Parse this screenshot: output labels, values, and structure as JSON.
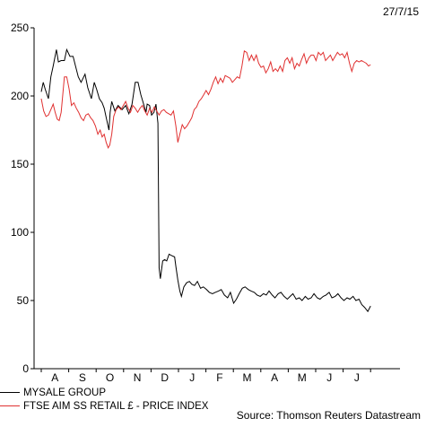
{
  "date_label": "27/7/15",
  "source_label": "Source: Thomson Reuters Datastream",
  "chart_data": {
    "type": "line",
    "ylim": [
      0,
      250
    ],
    "yticks": [
      0,
      50,
      100,
      150,
      200,
      250
    ],
    "x_categories": [
      "A",
      "S",
      "O",
      "N",
      "D",
      "J",
      "F",
      "M",
      "A",
      "M",
      "J",
      "J"
    ],
    "grid": false,
    "legend_position": "bottom-left",
    "series": [
      {
        "name": "MYSALE GROUP",
        "color": "#000000",
        "points": [
          [
            0.0,
            203
          ],
          [
            0.05,
            210
          ],
          [
            0.1,
            205
          ],
          [
            0.18,
            198
          ],
          [
            0.24,
            214
          ],
          [
            0.3,
            222
          ],
          [
            0.38,
            234
          ],
          [
            0.43,
            225
          ],
          [
            0.5,
            226
          ],
          [
            0.58,
            226
          ],
          [
            0.64,
            234
          ],
          [
            0.72,
            229
          ],
          [
            0.8,
            229
          ],
          [
            0.86,
            222
          ],
          [
            0.93,
            214
          ],
          [
            1.0,
            210
          ],
          [
            1.1,
            216
          ],
          [
            1.17,
            206
          ],
          [
            1.26,
            198
          ],
          [
            1.33,
            210
          ],
          [
            1.39,
            205
          ],
          [
            1.46,
            198
          ],
          [
            1.53,
            195
          ],
          [
            1.58,
            191
          ],
          [
            1.64,
            183
          ],
          [
            1.7,
            175
          ],
          [
            1.73,
            188
          ],
          [
            1.77,
            196
          ],
          [
            1.85,
            189
          ],
          [
            1.93,
            193
          ],
          [
            2.03,
            190
          ],
          [
            2.12,
            193
          ],
          [
            2.2,
            187
          ],
          [
            2.28,
            194
          ],
          [
            2.36,
            210
          ],
          [
            2.43,
            210
          ],
          [
            2.5,
            201
          ],
          [
            2.58,
            193
          ],
          [
            2.63,
            188
          ],
          [
            2.66,
            194
          ],
          [
            2.72,
            193
          ],
          [
            2.77,
            186
          ],
          [
            2.83,
            188
          ],
          [
            2.88,
            194
          ],
          [
            2.93,
            180
          ],
          [
            2.96,
            74
          ],
          [
            2.99,
            66
          ],
          [
            3.05,
            79
          ],
          [
            3.1,
            80
          ],
          [
            3.15,
            79
          ],
          [
            3.21,
            84
          ],
          [
            3.27,
            83
          ],
          [
            3.35,
            82
          ],
          [
            3.38,
            75
          ],
          [
            3.43,
            65
          ],
          [
            3.48,
            57
          ],
          [
            3.52,
            53
          ],
          [
            3.58,
            60
          ],
          [
            3.65,
            63
          ],
          [
            3.72,
            64
          ],
          [
            3.78,
            62
          ],
          [
            3.85,
            61
          ],
          [
            3.92,
            64
          ],
          [
            4.0,
            59
          ],
          [
            4.07,
            60
          ],
          [
            4.15,
            58
          ],
          [
            4.22,
            56
          ],
          [
            4.3,
            55
          ],
          [
            4.37,
            56
          ],
          [
            4.45,
            57
          ],
          [
            4.52,
            58
          ],
          [
            4.6,
            54
          ],
          [
            4.68,
            52
          ],
          [
            4.75,
            56
          ],
          [
            4.83,
            48
          ],
          [
            4.9,
            51
          ],
          [
            4.97,
            55
          ],
          [
            5.05,
            59
          ],
          [
            5.12,
            60
          ],
          [
            5.2,
            58
          ],
          [
            5.27,
            57
          ],
          [
            5.35,
            56
          ],
          [
            5.42,
            54
          ],
          [
            5.5,
            53
          ],
          [
            5.58,
            55
          ],
          [
            5.65,
            54
          ],
          [
            5.72,
            57
          ],
          [
            5.8,
            54
          ],
          [
            5.87,
            52
          ],
          [
            5.95,
            55
          ],
          [
            6.02,
            56
          ],
          [
            6.1,
            53
          ],
          [
            6.18,
            51
          ],
          [
            6.25,
            53
          ],
          [
            6.32,
            55
          ],
          [
            6.4,
            51
          ],
          [
            6.48,
            52
          ],
          [
            6.55,
            50
          ],
          [
            6.63,
            53
          ],
          [
            6.7,
            51
          ],
          [
            6.78,
            52
          ],
          [
            6.85,
            55
          ],
          [
            6.93,
            52
          ],
          [
            7.0,
            51
          ],
          [
            7.08,
            53
          ],
          [
            7.15,
            54
          ],
          [
            7.23,
            56
          ],
          [
            7.3,
            52
          ],
          [
            7.38,
            53
          ],
          [
            7.45,
            55
          ],
          [
            7.53,
            52
          ],
          [
            7.6,
            50
          ],
          [
            7.68,
            52
          ],
          [
            7.75,
            51
          ],
          [
            7.83,
            53
          ],
          [
            7.9,
            50
          ],
          [
            7.98,
            51
          ],
          [
            8.05,
            47
          ],
          [
            8.12,
            45
          ],
          [
            8.2,
            42
          ],
          [
            8.27,
            46
          ]
        ]
      },
      {
        "name": "FTSE AIM SS RETAIL £ - PRICE INDEX",
        "color": "#e03030",
        "points": [
          [
            0.0,
            198
          ],
          [
            0.06,
            189
          ],
          [
            0.12,
            185
          ],
          [
            0.18,
            186
          ],
          [
            0.24,
            190
          ],
          [
            0.3,
            194
          ],
          [
            0.35,
            188
          ],
          [
            0.4,
            183
          ],
          [
            0.45,
            182
          ],
          [
            0.5,
            188
          ],
          [
            0.54,
            201
          ],
          [
            0.58,
            214
          ],
          [
            0.64,
            214
          ],
          [
            0.7,
            205
          ],
          [
            0.76,
            193
          ],
          [
            0.82,
            195
          ],
          [
            0.88,
            191
          ],
          [
            0.94,
            188
          ],
          [
            1.0,
            184
          ],
          [
            1.06,
            182
          ],
          [
            1.12,
            186
          ],
          [
            1.18,
            187
          ],
          [
            1.24,
            184
          ],
          [
            1.3,
            182
          ],
          [
            1.36,
            178
          ],
          [
            1.42,
            172
          ],
          [
            1.48,
            175
          ],
          [
            1.53,
            170
          ],
          [
            1.58,
            172
          ],
          [
            1.63,
            166
          ],
          [
            1.68,
            162
          ],
          [
            1.72,
            164
          ],
          [
            1.77,
            172
          ],
          [
            1.82,
            185
          ],
          [
            1.88,
            190
          ],
          [
            1.94,
            192
          ],
          [
            2.0,
            190
          ],
          [
            2.06,
            193
          ],
          [
            2.12,
            196
          ],
          [
            2.18,
            191
          ],
          [
            2.24,
            188
          ],
          [
            2.3,
            193
          ],
          [
            2.36,
            191
          ],
          [
            2.42,
            188
          ],
          [
            2.48,
            191
          ],
          [
            2.54,
            193
          ],
          [
            2.6,
            189
          ],
          [
            2.66,
            186
          ],
          [
            2.72,
            191
          ],
          [
            2.78,
            188
          ],
          [
            2.84,
            192
          ],
          [
            2.9,
            189
          ],
          [
            2.96,
            186
          ],
          [
            3.02,
            189
          ],
          [
            3.08,
            190
          ],
          [
            3.14,
            188
          ],
          [
            3.2,
            187
          ],
          [
            3.26,
            186
          ],
          [
            3.32,
            189
          ],
          [
            3.38,
            178
          ],
          [
            3.43,
            166
          ],
          [
            3.48,
            172
          ],
          [
            3.54,
            179
          ],
          [
            3.6,
            176
          ],
          [
            3.66,
            178
          ],
          [
            3.72,
            181
          ],
          [
            3.78,
            184
          ],
          [
            3.84,
            190
          ],
          [
            3.9,
            192
          ],
          [
            3.96,
            196
          ],
          [
            4.02,
            198
          ],
          [
            4.08,
            201
          ],
          [
            4.14,
            204
          ],
          [
            4.2,
            201
          ],
          [
            4.26,
            205
          ],
          [
            4.32,
            210
          ],
          [
            4.38,
            214
          ],
          [
            4.44,
            209
          ],
          [
            4.5,
            213
          ],
          [
            4.56,
            210
          ],
          [
            4.62,
            215
          ],
          [
            4.68,
            214
          ],
          [
            4.74,
            213
          ],
          [
            4.8,
            210
          ],
          [
            4.86,
            212
          ],
          [
            4.92,
            214
          ],
          [
            4.98,
            213
          ],
          [
            5.04,
            222
          ],
          [
            5.1,
            233
          ],
          [
            5.16,
            232
          ],
          [
            5.22,
            226
          ],
          [
            5.28,
            230
          ],
          [
            5.34,
            226
          ],
          [
            5.4,
            230
          ],
          [
            5.46,
            224
          ],
          [
            5.52,
            221
          ],
          [
            5.58,
            222
          ],
          [
            5.64,
            217
          ],
          [
            5.7,
            220
          ],
          [
            5.76,
            225
          ],
          [
            5.82,
            218
          ],
          [
            5.88,
            220
          ],
          [
            5.94,
            218
          ],
          [
            6.0,
            222
          ],
          [
            6.06,
            218
          ],
          [
            6.12,
            226
          ],
          [
            6.18,
            228
          ],
          [
            6.24,
            224
          ],
          [
            6.3,
            228
          ],
          [
            6.36,
            220
          ],
          [
            6.42,
            224
          ],
          [
            6.48,
            222
          ],
          [
            6.54,
            227
          ],
          [
            6.6,
            231
          ],
          [
            6.66,
            224
          ],
          [
            6.72,
            228
          ],
          [
            6.78,
            230
          ],
          [
            6.84,
            230
          ],
          [
            6.9,
            226
          ],
          [
            6.96,
            232
          ],
          [
            7.02,
            230
          ],
          [
            7.08,
            232
          ],
          [
            7.14,
            226
          ],
          [
            7.2,
            228
          ],
          [
            7.26,
            230
          ],
          [
            7.32,
            226
          ],
          [
            7.38,
            229
          ],
          [
            7.44,
            232
          ],
          [
            7.5,
            230
          ],
          [
            7.56,
            231
          ],
          [
            7.62,
            228
          ],
          [
            7.68,
            232
          ],
          [
            7.74,
            224
          ],
          [
            7.8,
            218
          ],
          [
            7.86,
            224
          ],
          [
            7.92,
            226
          ],
          [
            7.98,
            225
          ],
          [
            8.04,
            226
          ],
          [
            8.1,
            225
          ],
          [
            8.16,
            224
          ],
          [
            8.22,
            222
          ],
          [
            8.27,
            223
          ]
        ]
      }
    ]
  }
}
